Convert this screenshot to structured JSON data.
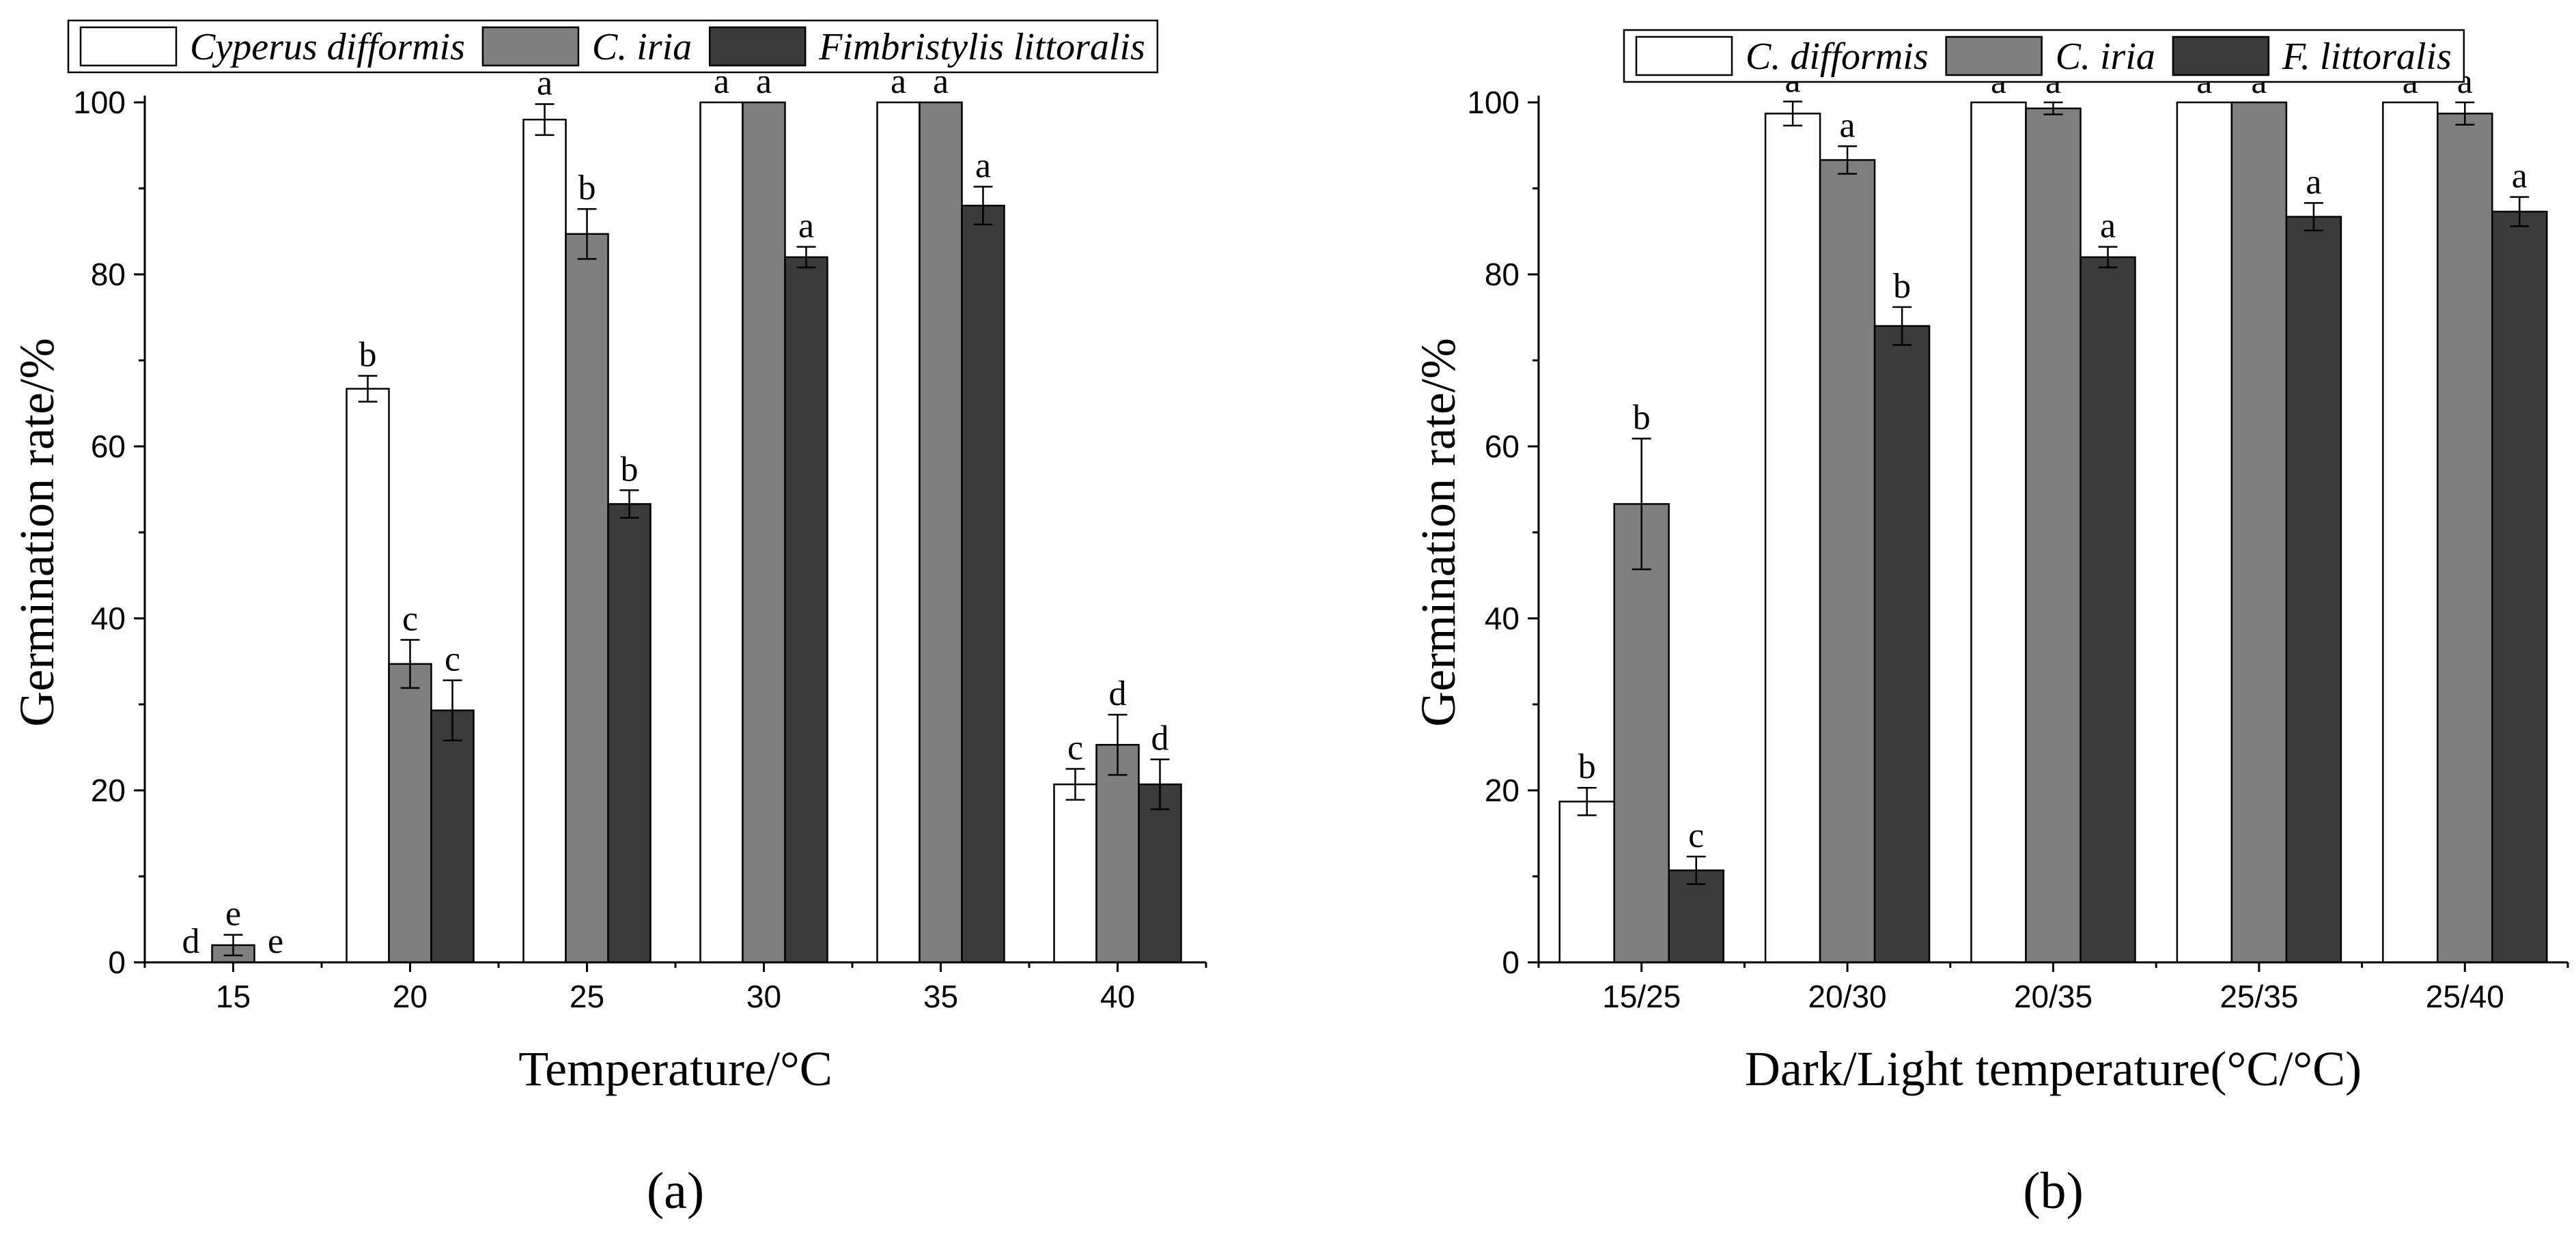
{
  "chart_data": [
    {
      "type": "bar",
      "panel_label": "(a)",
      "xlabel": "Temperature/°C",
      "ylabel": "Germination rate/%",
      "ylim": [
        0,
        100
      ],
      "yticks": [
        0,
        20,
        40,
        60,
        80,
        100
      ],
      "categories": [
        "15",
        "20",
        "25",
        "30",
        "35",
        "40"
      ],
      "legend_position": "top",
      "series": [
        {
          "name": "Cyperus difformis",
          "color": "#ffffff",
          "values": [
            0,
            66.7,
            98,
            100,
            100,
            20.7
          ],
          "errors": [
            0,
            1.5,
            1.8,
            0,
            0,
            1.8
          ],
          "letters": [
            "d",
            "b",
            "a",
            "a",
            "a",
            "c"
          ]
        },
        {
          "name": "C. iria",
          "color": "#7f7f7f",
          "values": [
            2,
            34.7,
            84.7,
            100,
            100,
            25.3
          ],
          "errors": [
            1.2,
            2.8,
            2.9,
            0,
            0,
            3.5
          ],
          "letters": [
            "e",
            "c",
            "b",
            "a",
            "a",
            "d"
          ]
        },
        {
          "name": "Fimbristylis littoralis",
          "color": "#3b3b3b",
          "values": [
            0,
            29.3,
            53.3,
            82,
            88,
            20.7
          ],
          "errors": [
            0,
            3.5,
            1.6,
            1.2,
            2.2,
            2.9
          ],
          "letters": [
            "e",
            "c",
            "b",
            "a",
            "a",
            "d"
          ]
        }
      ]
    },
    {
      "type": "bar",
      "panel_label": "(b)",
      "xlabel": "Dark/Light temperature(°C/°C)",
      "ylabel": "Germination rate/%",
      "ylim": [
        0,
        100
      ],
      "yticks": [
        0,
        20,
        40,
        60,
        80,
        100
      ],
      "categories": [
        "15/25",
        "20/30",
        "20/35",
        "25/35",
        "25/40"
      ],
      "legend_position": "top",
      "series": [
        {
          "name": "C. difformis",
          "color": "#ffffff",
          "values": [
            18.7,
            98.7,
            100,
            100,
            100
          ],
          "errors": [
            1.6,
            1.4,
            0,
            0,
            0
          ],
          "letters": [
            "b",
            "a",
            "a",
            "a",
            "a"
          ]
        },
        {
          "name": "C. iria",
          "color": "#7f7f7f",
          "values": [
            53.3,
            93.3,
            99.3,
            100,
            98.7
          ],
          "errors": [
            7.6,
            1.6,
            0.7,
            0,
            1.3
          ],
          "letters": [
            "b",
            "a",
            "a",
            "a",
            "a"
          ]
        },
        {
          "name": "F. littoralis",
          "color": "#3b3b3b",
          "values": [
            10.7,
            74,
            82,
            86.7,
            87.3
          ],
          "errors": [
            1.6,
            2.2,
            1.2,
            1.6,
            1.7
          ],
          "letters": [
            "c",
            "b",
            "a",
            "a",
            "a"
          ]
        }
      ]
    }
  ]
}
